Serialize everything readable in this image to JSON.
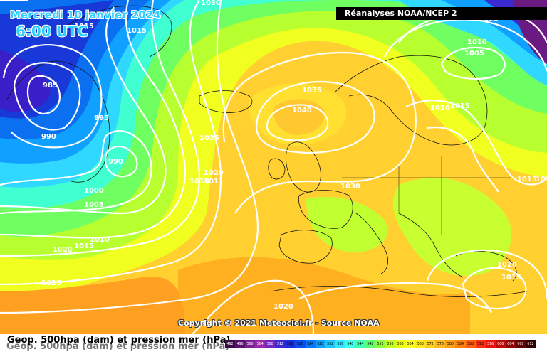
{
  "header": {
    "date": "Mercredi 10 janvier 2024",
    "time": "6:00 UTC"
  },
  "source": "Réanalyses NOAA/NCEP 2",
  "copyright": "Copyright © 2021 Meteociel.fr - Source NOAA",
  "legend": {
    "title_line1": "Geop. 500hpa (dam) et pression mer (hPa)",
    "ghost_line": "Geop. 500hpa (dam) et pression mer (hPa)",
    "scale_values": [
      "492",
      "496",
      "500",
      "504",
      "508",
      "512",
      "516",
      "520",
      "524",
      "528",
      "532",
      "536",
      "540",
      "544",
      "548",
      "552",
      "556",
      "560",
      "564",
      "568",
      "572",
      "576",
      "580",
      "584",
      "588",
      "592",
      "596",
      "600",
      "604",
      "608",
      "612"
    ],
    "scale_colors": [
      "#3b0a4a",
      "#5a1070",
      "#7a2090",
      "#9a2aa8",
      "#7028c0",
      "#3a2ad0",
      "#1a30e0",
      "#0a50f0",
      "#0a78f8",
      "#10a0ff",
      "#20c8ff",
      "#30e8ff",
      "#40ffe8",
      "#40ffb0",
      "#60ff70",
      "#90ff40",
      "#c0ff20",
      "#e8ff10",
      "#ffff20",
      "#ffe820",
      "#ffd020",
      "#ffb820",
      "#ffa018",
      "#ff8010",
      "#ff6010",
      "#ff3010",
      "#e81010",
      "#c00808",
      "#900404",
      "#600000",
      "#300000"
    ]
  },
  "isobar_labels": [
    {
      "text": "985"
    },
    {
      "text": "990"
    },
    {
      "text": "995"
    },
    {
      "text": "990"
    },
    {
      "text": "1000"
    },
    {
      "text": "1005"
    },
    {
      "text": "1010"
    },
    {
      "text": "1015"
    },
    {
      "text": "1020"
    },
    {
      "text": "1025"
    },
    {
      "text": "1015"
    },
    {
      "text": "1015"
    },
    {
      "text": "1025"
    },
    {
      "text": "1020"
    },
    {
      "text": "1010"
    },
    {
      "text": "1011"
    },
    {
      "text": "1035"
    },
    {
      "text": "1040"
    },
    {
      "text": "1030"
    },
    {
      "text": "1030"
    },
    {
      "text": "1020"
    },
    {
      "text": "1010"
    },
    {
      "text": "1005"
    },
    {
      "text": "1020"
    },
    {
      "text": "1015"
    },
    {
      "text": "1015"
    },
    {
      "text": "1015"
    },
    {
      "text": "1020"
    },
    {
      "text": "1015"
    },
    {
      "text": "1020"
    },
    {
      "text": "1000"
    }
  ]
}
